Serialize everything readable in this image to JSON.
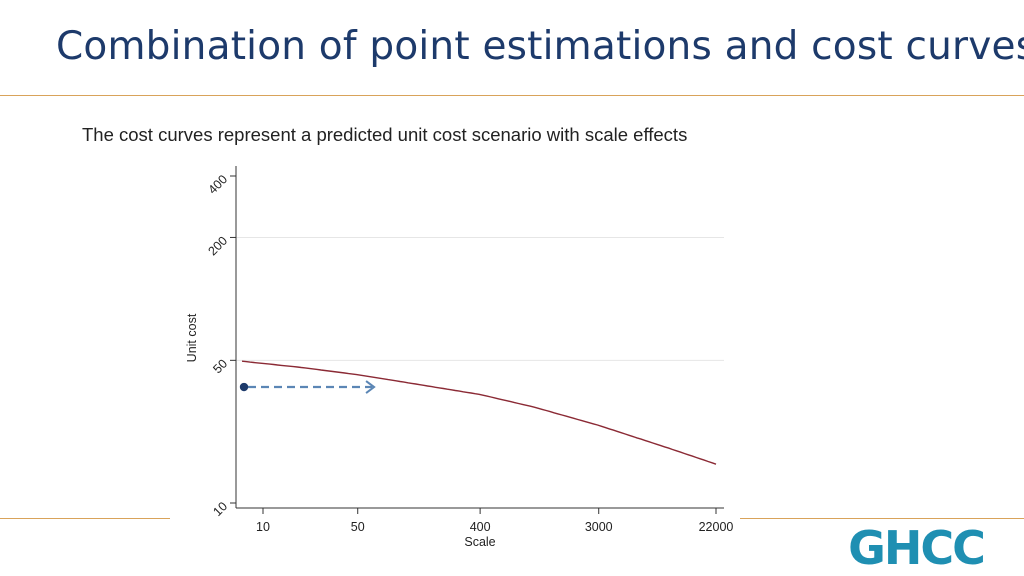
{
  "slide": {
    "title": "Combination of point estimations and cost curves",
    "subtitle": "The cost curves represent a predicted unit cost scenario with scale effects"
  },
  "logo": {
    "text": "GHCC",
    "color": "#1f8fb2"
  },
  "colors": {
    "title": "#1d3a6b",
    "rule": "#d9a35a",
    "curve": "#8b2a35",
    "point": "#1d3a6b",
    "arrow": "#5b86b5"
  },
  "chart_data": {
    "type": "line",
    "xlabel": "Scale",
    "ylabel": "Unit cost",
    "x_scale": "log",
    "y_scale": "log",
    "xlim": [
      7,
      22000
    ],
    "ylim": [
      10,
      400
    ],
    "x_ticks": [
      10,
      50,
      400,
      3000,
      22000
    ],
    "x_tick_labels": [
      "10",
      "50",
      "400",
      "3000",
      "22000"
    ],
    "y_ticks": [
      10,
      50,
      200,
      400
    ],
    "y_tick_labels": [
      "10",
      "50",
      "200",
      "400"
    ],
    "y_gridlines": [
      50,
      200
    ],
    "series": [
      {
        "x": [
          7,
          20,
          50,
          100,
          400,
          1000,
          3000,
          10000,
          22000
        ],
        "y": [
          49.5,
          46,
          42.5,
          39.5,
          34,
          29.5,
          24,
          18.5,
          15.5
        ]
      }
    ],
    "point_estimate": {
      "x": 7,
      "y": 37
    },
    "arrow": {
      "x_start": 7,
      "x_end": 66,
      "y": 37
    }
  }
}
